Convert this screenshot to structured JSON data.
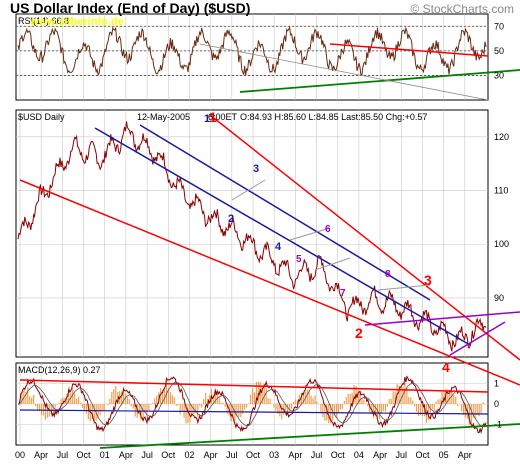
{
  "header": {
    "title": "US Dollar Index (End of Day) ($USD)",
    "watermark": "www.silberinfo.de",
    "brand": "© StockCharts.com"
  },
  "chart_data": [
    {
      "type": "line",
      "panel": "rsi",
      "label": "RSI(14) 66.8",
      "ylim": [
        10,
        80
      ],
      "ticks": [
        30,
        50,
        70
      ],
      "reference_lines": [
        30,
        50,
        70
      ],
      "grid": true
    },
    {
      "type": "line",
      "panel": "price",
      "label": "$USD Daily",
      "date_label": "12-May-2005",
      "time_label": "6:00ET",
      "ohlc_label": "O:84.93 H:85.60 L:84.85 Last:85.50 Chg:+0.57",
      "open": 84.93,
      "high": 85.6,
      "low": 84.85,
      "last": 85.5,
      "change": 0.57,
      "ylim": [
        79,
        125
      ],
      "ticks": [
        90,
        100,
        110,
        120
      ],
      "x": [
        "2000-01",
        "2000-07",
        "2001-01",
        "2001-07",
        "2002-01",
        "2002-04",
        "2002-07",
        "2002-10",
        "2003-01",
        "2003-04",
        "2003-07",
        "2003-10",
        "2004-01",
        "2004-04",
        "2004-07",
        "2004-10",
        "2005-01",
        "2005-05"
      ],
      "values": [
        101,
        110,
        118,
        116,
        121,
        117,
        109,
        105,
        102,
        98,
        94,
        96,
        88,
        90,
        88,
        85,
        82,
        85.5
      ],
      "wave_labels": [
        {
          "text": "1",
          "series": "red"
        },
        {
          "text": "2",
          "series": "red"
        },
        {
          "text": "3",
          "series": "red"
        },
        {
          "text": "4",
          "series": "red"
        },
        {
          "text": "1",
          "series": "blue"
        },
        {
          "text": "2",
          "series": "blue"
        },
        {
          "text": "3",
          "series": "blue"
        },
        {
          "text": "4",
          "series": "blue"
        },
        {
          "text": "5",
          "series": "purple"
        },
        {
          "text": "6",
          "series": "purple"
        },
        {
          "text": "7",
          "series": "purple"
        },
        {
          "text": "8",
          "series": "purple"
        }
      ],
      "grid": true
    },
    {
      "type": "line",
      "panel": "macd",
      "label": "MACD(12,26,9) 0.27",
      "ylim": [
        -2,
        2
      ],
      "ticks": [
        -1,
        0,
        1
      ],
      "grid": true
    }
  ],
  "x_axis": {
    "tick_labels": [
      "00",
      "Apr",
      "Jul",
      "Oct",
      "01",
      "Apr",
      "Jul",
      "Oct",
      "02",
      "Apr",
      "Jul",
      "Oct",
      "03",
      "Apr",
      "Jul",
      "Oct",
      "04",
      "Apr",
      "Jul",
      "Oct",
      "05",
      "Apr"
    ]
  },
  "colors": {
    "price": "#8b0000",
    "rsi": "#6b2a10",
    "trend_red": "#ff0000",
    "trend_blue": "#1a1aa0",
    "trend_green": "#008000",
    "trend_purple": "#9900cc",
    "grid": "#c8c8c8",
    "watermark": "#ffff00"
  }
}
